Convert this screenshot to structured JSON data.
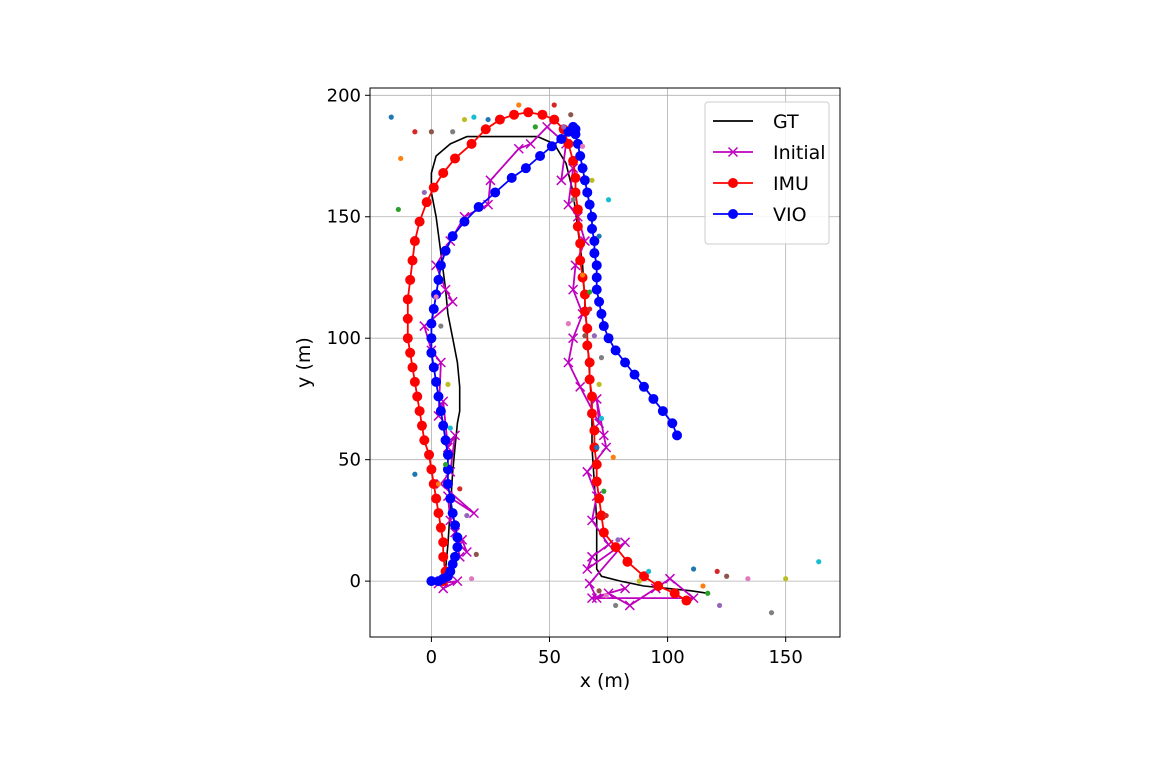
{
  "chart_data": {
    "type": "line",
    "xlabel": "x (m)",
    "ylabel": "y (m)",
    "xlim": [
      -26,
      173
    ],
    "ylim": [
      -23,
      203
    ],
    "xticks": [
      0,
      50,
      100,
      150
    ],
    "yticks": [
      0,
      50,
      100,
      150,
      200
    ],
    "grid": true,
    "legend_position": "top-right",
    "legend": [
      {
        "label": "GT",
        "color": "#000000",
        "marker": "none"
      },
      {
        "label": "Initial",
        "color": "#bf00bf",
        "marker": "x"
      },
      {
        "label": "IMU",
        "color": "#ff0000",
        "marker": "o"
      },
      {
        "label": "VIO",
        "color": "#0000ff",
        "marker": "o"
      }
    ],
    "series": [
      {
        "name": "GT",
        "color": "#000000",
        "marker": "none",
        "x": [
          0,
          4,
          6,
          7,
          8,
          9,
          10,
          11,
          12,
          12,
          11,
          9,
          7,
          6,
          4,
          2,
          0,
          0,
          2,
          8,
          15,
          25,
          35,
          45,
          52,
          57,
          60,
          62,
          64,
          65,
          66,
          67,
          68,
          68,
          69,
          70,
          70,
          72,
          80,
          90,
          100,
          110,
          117
        ],
        "y": [
          0,
          0,
          5,
          15,
          30,
          45,
          55,
          65,
          70,
          80,
          90,
          100,
          110,
          120,
          135,
          150,
          160,
          168,
          175,
          180,
          183,
          183,
          183,
          183,
          180,
          172,
          160,
          145,
          130,
          115,
          100,
          85,
          70,
          55,
          40,
          25,
          5,
          2,
          0,
          -2,
          -3,
          -4,
          -5
        ]
      },
      {
        "name": "Initial",
        "color": "#bf00bf",
        "marker": "x",
        "x": [
          5,
          11,
          3,
          7,
          12,
          10,
          13,
          15,
          12,
          8,
          7,
          18,
          4,
          8,
          10,
          7,
          5,
          3,
          4,
          0,
          -3,
          9,
          6,
          2,
          8,
          14,
          24,
          25,
          37,
          42,
          49,
          57,
          55,
          60,
          58,
          62,
          65,
          61,
          60,
          64,
          60,
          58,
          63,
          71,
          70,
          73,
          74,
          66,
          70,
          68,
          75,
          68,
          66,
          82,
          67,
          70,
          75,
          84,
          95,
          101,
          111,
          68,
          82
        ],
        "y": [
          -3,
          0,
          -1,
          5,
          10,
          20,
          17,
          12,
          15,
          25,
          35,
          28,
          40,
          45,
          60,
          55,
          74,
          68,
          90,
          95,
          105,
          115,
          120,
          130,
          140,
          150,
          155,
          165,
          178,
          180,
          187,
          180,
          165,
          170,
          155,
          150,
          140,
          130,
          120,
          110,
          100,
          90,
          80,
          65,
          75,
          60,
          55,
          45,
          35,
          25,
          15,
          10,
          5,
          16,
          -1,
          -7,
          -5,
          -10,
          -3,
          1,
          -7,
          -7,
          -3
        ]
      },
      {
        "name": "IMU",
        "color": "#ff0000",
        "marker": "o",
        "x": [
          5,
          6,
          5,
          5,
          4,
          3,
          2,
          1,
          0,
          -1,
          -3,
          -4,
          -5,
          -6,
          -7,
          -8,
          -9,
          -10,
          -10,
          -10,
          -9,
          -8,
          -7,
          -5,
          -2,
          1,
          5,
          10,
          17,
          23,
          29,
          35,
          41,
          47,
          52,
          56,
          58,
          60,
          61,
          61,
          62,
          62,
          63,
          63,
          64,
          65,
          65,
          66,
          66,
          67,
          67,
          68,
          68,
          69,
          69,
          70,
          70,
          71,
          72,
          73,
          78,
          83,
          90,
          96,
          103,
          108
        ],
        "y": [
          0,
          4,
          10,
          16,
          22,
          28,
          34,
          40,
          46,
          52,
          58,
          64,
          70,
          76,
          82,
          88,
          94,
          100,
          108,
          116,
          124,
          132,
          140,
          148,
          156,
          162,
          168,
          174,
          180,
          186,
          190,
          192,
          193,
          192,
          190,
          186,
          180,
          173,
          166,
          160,
          153,
          146,
          139,
          132,
          125,
          118,
          111,
          104,
          97,
          90,
          83,
          76,
          69,
          62,
          55,
          48,
          41,
          34,
          27,
          20,
          14,
          8,
          2,
          -2,
          -5,
          -8
        ]
      },
      {
        "name": "VIO",
        "color": "#0000ff",
        "marker": "o",
        "x": [
          0,
          3,
          5,
          7,
          8,
          9,
          10,
          11,
          11,
          10,
          9,
          8,
          7,
          7,
          7,
          6,
          5,
          4,
          3,
          2,
          1,
          0,
          0,
          0,
          1,
          2,
          3,
          4,
          6,
          9,
          14,
          20,
          27,
          34,
          40,
          46,
          51,
          55,
          58,
          60,
          61,
          61,
          62,
          63,
          64,
          65,
          66,
          67,
          68,
          68,
          69,
          69,
          70,
          70,
          70,
          71,
          72,
          73,
          75,
          78,
          82,
          86,
          90,
          94,
          98,
          102,
          104
        ],
        "y": [
          0,
          0,
          1,
          2,
          4,
          7,
          10,
          14,
          18,
          23,
          28,
          34,
          40,
          46,
          52,
          58,
          64,
          70,
          76,
          82,
          88,
          94,
          100,
          106,
          112,
          118,
          124,
          130,
          136,
          142,
          148,
          154,
          160,
          166,
          170,
          175,
          179,
          182,
          185,
          187,
          186,
          184,
          180,
          175,
          170,
          165,
          160,
          155,
          150,
          145,
          140,
          135,
          130,
          125,
          120,
          115,
          110,
          105,
          100,
          95,
          90,
          85,
          80,
          75,
          70,
          65,
          60
        ]
      }
    ],
    "scatter_colors": [
      "#1f77b4",
      "#ff7f0e",
      "#2ca02c",
      "#d62728",
      "#9467bd",
      "#8c564b",
      "#e377c2",
      "#7f7f7f",
      "#bcbd22",
      "#17becf"
    ],
    "scatter_points": [
      [
        -17,
        191
      ],
      [
        -13,
        174
      ],
      [
        -14,
        153
      ],
      [
        -7,
        185
      ],
      [
        -3,
        160
      ],
      [
        0,
        185
      ],
      [
        2,
        117
      ],
      [
        4,
        105
      ],
      [
        7,
        81
      ],
      [
        8,
        63
      ],
      [
        -7,
        44
      ],
      [
        3,
        40
      ],
      [
        6,
        48
      ],
      [
        12,
        38
      ],
      [
        15,
        27
      ],
      [
        19,
        11
      ],
      [
        17,
        1
      ],
      [
        9,
        185
      ],
      [
        14,
        190
      ],
      [
        18,
        191
      ],
      [
        24,
        190
      ],
      [
        37,
        196
      ],
      [
        44,
        187
      ],
      [
        52,
        196
      ],
      [
        56,
        187
      ],
      [
        59,
        192
      ],
      [
        64,
        179
      ],
      [
        60,
        157
      ],
      [
        68,
        165
      ],
      [
        75,
        157
      ],
      [
        71,
        142
      ],
      [
        64,
        126
      ],
      [
        67,
        119
      ],
      [
        67,
        112
      ],
      [
        69,
        101
      ],
      [
        65,
        101
      ],
      [
        58,
        106
      ],
      [
        72,
        92
      ],
      [
        71,
        81
      ],
      [
        72,
        67
      ],
      [
        70,
        55
      ],
      [
        77,
        51
      ],
      [
        73,
        37
      ],
      [
        74,
        27
      ],
      [
        79,
        17
      ],
      [
        71,
        -4
      ],
      [
        74,
        -6
      ],
      [
        78,
        -10
      ],
      [
        88,
        0
      ],
      [
        92,
        4
      ],
      [
        111,
        5
      ],
      [
        115,
        -2
      ],
      [
        117,
        -5
      ],
      [
        121,
        4
      ],
      [
        122,
        -10
      ],
      [
        125,
        2
      ],
      [
        134,
        1
      ],
      [
        144,
        -13
      ],
      [
        150,
        1
      ],
      [
        164,
        8
      ]
    ]
  }
}
